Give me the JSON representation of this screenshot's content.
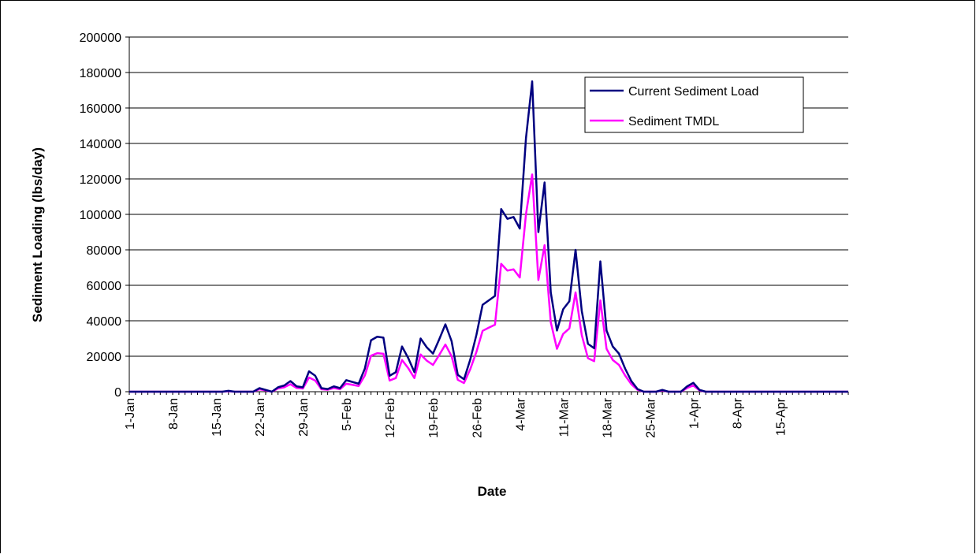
{
  "chart_data": {
    "type": "line",
    "title": "",
    "xlabel": "Date",
    "ylabel": "Sediment Loading (lbs/day)",
    "ylim": [
      0,
      200000
    ],
    "yticks": [
      "0",
      "20000",
      "40000",
      "60000",
      "80000",
      "100000",
      "120000",
      "140000",
      "160000",
      "180000",
      "200000"
    ],
    "grid": "horizontal",
    "legend_position": "top-right",
    "x_tick_labels": [
      "1-Jan",
      "8-Jan",
      "15-Jan",
      "22-Jan",
      "29-Jan",
      "5-Feb",
      "12-Feb",
      "19-Feb",
      "26-Feb",
      "4-Mar",
      "11-Mar",
      "18-Mar",
      "25-Mar",
      "1-Apr",
      "8-Apr",
      "15-Apr"
    ],
    "x_start": "1-Jan",
    "x_end": "17-Apr",
    "series": [
      {
        "name": "Current Sediment Load",
        "color": "#000080",
        "values": [
          0,
          0,
          0,
          0,
          0,
          0,
          0,
          0,
          0,
          0,
          0,
          0,
          0,
          0,
          0,
          0,
          500,
          0,
          0,
          0,
          0,
          2000,
          1000,
          0,
          2500,
          3500,
          6000,
          3000,
          2500,
          11500,
          9000,
          2000,
          1500,
          3000,
          2000,
          6500,
          5500,
          4500,
          13000,
          29000,
          31000,
          30500,
          9000,
          11000,
          25500,
          19000,
          11000,
          30000,
          25000,
          21500,
          29500,
          38000,
          28500,
          9500,
          7000,
          18000,
          32000,
          49000,
          51500,
          54000,
          103000,
          97500,
          98500,
          92000,
          143000,
          175000,
          90000,
          118000,
          56000,
          34500,
          46500,
          51000,
          80000,
          45500,
          27000,
          24500,
          73500,
          34500,
          25500,
          21500,
          13000,
          6000,
          1500,
          0,
          0,
          0,
          1000,
          0,
          0,
          0,
          3000,
          5000,
          1000,
          0,
          0,
          0,
          0,
          0,
          0,
          0,
          0,
          0,
          0,
          0,
          0,
          0,
          0,
          0,
          0,
          0,
          0,
          0,
          0,
          0,
          0,
          0,
          0
        ]
      },
      {
        "name": "Sediment TMDL",
        "color": "#ff00ff",
        "values": [
          0,
          0,
          0,
          0,
          0,
          0,
          0,
          0,
          0,
          0,
          0,
          0,
          0,
          0,
          0,
          0,
          300,
          0,
          0,
          0,
          0,
          1400,
          700,
          0,
          1800,
          2500,
          4200,
          2100,
          1800,
          8000,
          6300,
          1400,
          1100,
          2100,
          1400,
          4500,
          3900,
          3200,
          9100,
          20300,
          21700,
          21400,
          6300,
          7700,
          17900,
          13300,
          7700,
          21000,
          17500,
          15100,
          20700,
          26600,
          20000,
          6700,
          4900,
          12600,
          22400,
          34300,
          36100,
          37800,
          72100,
          68300,
          69000,
          64400,
          100100,
          122500,
          63000,
          82600,
          39200,
          24200,
          32600,
          35700,
          56000,
          31900,
          18900,
          17200,
          51500,
          24200,
          17900,
          15100,
          9100,
          4200,
          1100,
          0,
          0,
          0,
          700,
          0,
          0,
          0,
          2100,
          3500,
          700,
          0,
          0,
          0,
          0,
          0,
          0,
          0,
          0,
          0,
          0,
          0,
          0,
          0,
          0,
          0,
          0,
          0,
          0,
          0,
          0,
          0,
          0,
          0,
          0
        ]
      }
    ]
  }
}
